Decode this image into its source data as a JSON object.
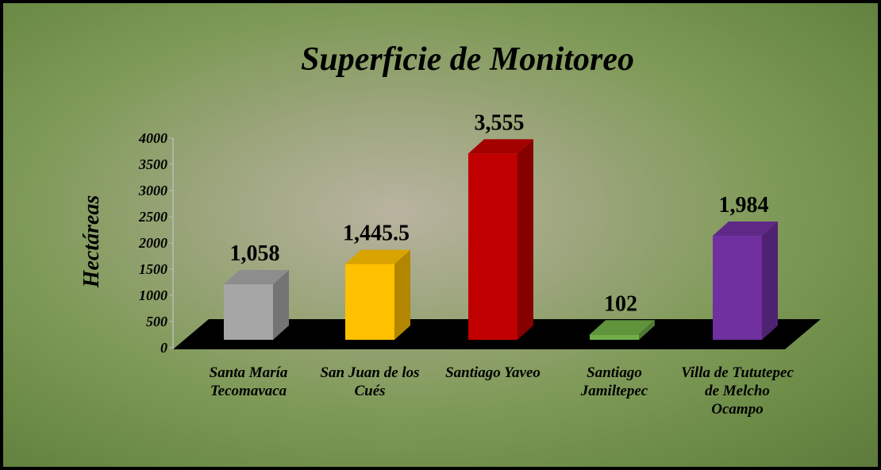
{
  "chart_data": {
    "type": "bar3d",
    "title": "Superficie de Monitoreo",
    "y_label": "Hectáreas",
    "categories": [
      "Santa María Tecomavaca",
      "San Juan de los Cués",
      "Santiago Yaveo",
      "Santiago Jamiltepec",
      "Villa de Tututepec de Melcho Ocampo"
    ],
    "values": [
      1058,
      1445.5,
      3555,
      102,
      1984
    ],
    "value_labels": [
      "1,058",
      "1,445.5",
      "3,555",
      "102",
      "1,984"
    ],
    "colors": [
      "#a6a6a6",
      "#ffc000",
      "#c00000",
      "#70ad47",
      "#7030a0"
    ],
    "ylim": [
      0,
      4000
    ],
    "yticks": [
      0,
      500,
      1000,
      1500,
      2000,
      2500,
      3000,
      3500,
      4000
    ]
  }
}
